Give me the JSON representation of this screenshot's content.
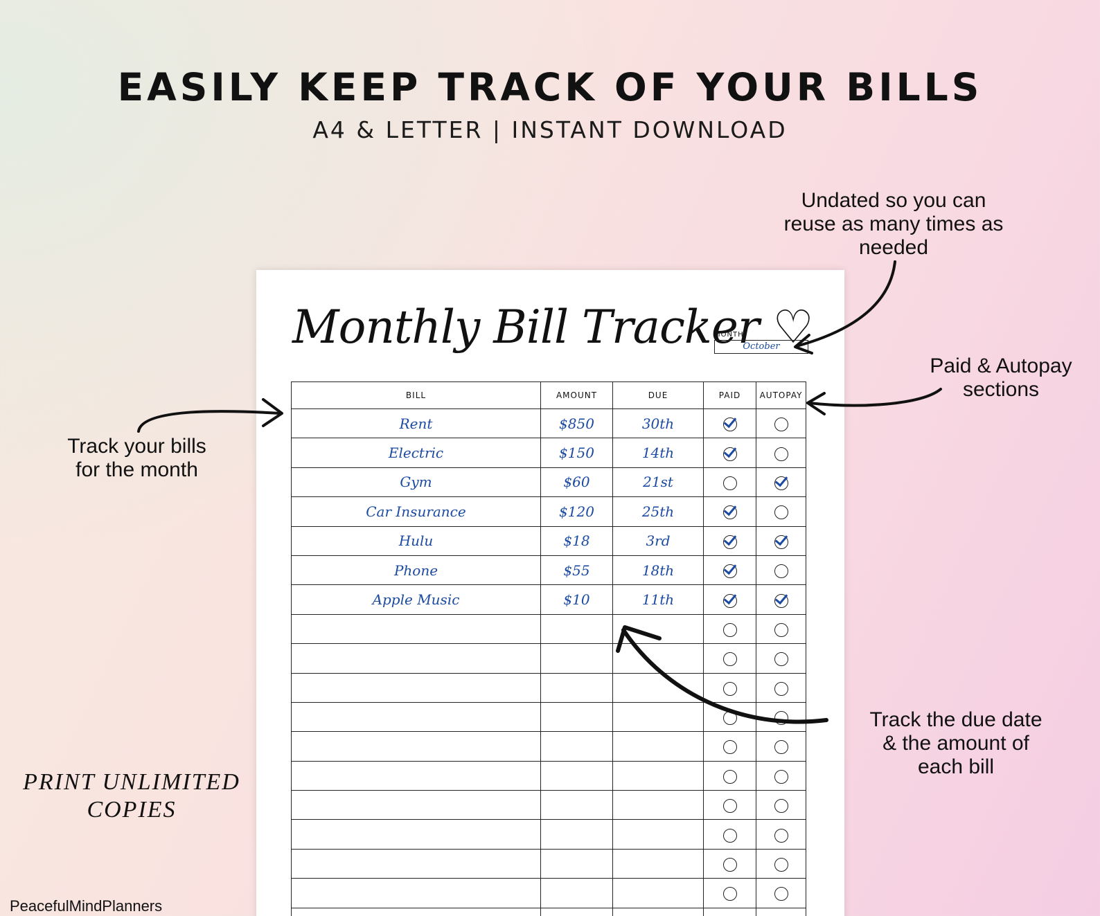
{
  "header": {
    "headline": "EASILY KEEP TRACK OF YOUR BILLS",
    "subhead": "A4 & LETTER | INSTANT DOWNLOAD"
  },
  "notes": {
    "undated": [
      "Undated so you can",
      "reuse as many times as",
      "needed"
    ],
    "paid_autopay": [
      "Paid & Autopay",
      "sections"
    ],
    "track_bills": [
      "Track your bills",
      "for the month"
    ],
    "due_amount": [
      "Track the due date",
      "& the amount of",
      "each bill"
    ],
    "print_unlimited": [
      "PRINT UNLIMITED",
      "COPIES"
    ]
  },
  "brand": "PeacefulMindPlanners",
  "sheet": {
    "title": "Monthly Bill Tracker ♡",
    "month_label": "MONTH:",
    "month_value": "October",
    "columns": [
      "BILL",
      "AMOUNT",
      "DUE",
      "PAID",
      "AUTOPAY"
    ],
    "rows": [
      {
        "bill": "Rent",
        "amount": "$850",
        "due": "30th",
        "paid": true,
        "autopay": false
      },
      {
        "bill": "Electric",
        "amount": "$150",
        "due": "14th",
        "paid": true,
        "autopay": false
      },
      {
        "bill": "Gym",
        "amount": "$60",
        "due": "21st",
        "paid": false,
        "autopay": true
      },
      {
        "bill": "Car Insurance",
        "amount": "$120",
        "due": "25th",
        "paid": true,
        "autopay": false
      },
      {
        "bill": "Hulu",
        "amount": "$18",
        "due": "3rd",
        "paid": true,
        "autopay": true
      },
      {
        "bill": "Phone",
        "amount": "$55",
        "due": "18th",
        "paid": true,
        "autopay": false
      },
      {
        "bill": "Apple Music",
        "amount": "$10",
        "due": "11th",
        "paid": true,
        "autopay": true
      },
      {
        "bill": "",
        "amount": "",
        "due": "",
        "paid": false,
        "autopay": false
      },
      {
        "bill": "",
        "amount": "",
        "due": "",
        "paid": false,
        "autopay": false
      },
      {
        "bill": "",
        "amount": "",
        "due": "",
        "paid": false,
        "autopay": false
      },
      {
        "bill": "",
        "amount": "",
        "due": "",
        "paid": false,
        "autopay": false
      },
      {
        "bill": "",
        "amount": "",
        "due": "",
        "paid": false,
        "autopay": false
      },
      {
        "bill": "",
        "amount": "",
        "due": "",
        "paid": false,
        "autopay": false
      },
      {
        "bill": "",
        "amount": "",
        "due": "",
        "paid": false,
        "autopay": false
      },
      {
        "bill": "",
        "amount": "",
        "due": "",
        "paid": false,
        "autopay": false
      },
      {
        "bill": "",
        "amount": "",
        "due": "",
        "paid": false,
        "autopay": false
      },
      {
        "bill": "",
        "amount": "",
        "due": "",
        "paid": false,
        "autopay": false
      },
      {
        "bill": "",
        "amount": "",
        "due": "",
        "paid": false,
        "autopay": false
      }
    ]
  },
  "colors": {
    "ink_blue": "#1b4aa3",
    "text": "#111111"
  }
}
